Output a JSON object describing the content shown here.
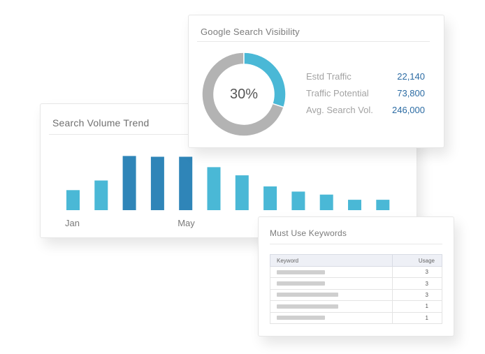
{
  "search_volume_trend": {
    "title": "Search Volume Trend",
    "x_labels_shown": [
      "Jan",
      "May"
    ],
    "chart_data": {
      "type": "bar",
      "title": "Search Volume Trend",
      "categories": [
        "",
        "",
        "",
        "",
        "",
        "",
        "",
        "",
        "",
        "",
        "",
        ""
      ],
      "tick_labels": [
        {
          "index": 0,
          "label": "Jan"
        },
        {
          "index": 4,
          "label": "May"
        }
      ],
      "values": [
        27,
        40,
        73,
        72,
        72,
        58,
        47,
        32,
        25,
        21,
        14,
        14
      ],
      "ylim": [
        0,
        80
      ],
      "grid": false,
      "bar_colors": [
        "#4ab8d6",
        "#4ab8d6",
        "#2f85b8",
        "#2f85b8",
        "#2f85b8",
        "#4ab8d6",
        "#4ab8d6",
        "#4ab8d6",
        "#4ab8d6",
        "#4ab8d6",
        "#4ab8d6",
        "#4ab8d6"
      ]
    }
  },
  "google_search_visibility": {
    "title": "Google Search Visibility",
    "donut_percent_label": "30%",
    "donut_fraction": 0.3,
    "colors": {
      "filled": "#4ab8d6",
      "remaining": "#b3b3b3"
    },
    "metrics": [
      {
        "label": "Estd Traffic",
        "value": "22,140"
      },
      {
        "label": "Traffic Potential",
        "value": "73,800"
      },
      {
        "label": "Avg. Search Vol.",
        "value": "246,000"
      }
    ]
  },
  "must_use_keywords": {
    "title": "Must Use Keywords",
    "columns": [
      "Keyword",
      "Usage"
    ],
    "rows": [
      {
        "keyword_bar_fraction": 0.43,
        "usage": "3"
      },
      {
        "keyword_bar_fraction": 0.43,
        "usage": "3"
      },
      {
        "keyword_bar_fraction": 0.55,
        "usage": "3"
      },
      {
        "keyword_bar_fraction": 0.55,
        "usage": "1"
      },
      {
        "keyword_bar_fraction": 0.43,
        "usage": "1"
      }
    ]
  }
}
